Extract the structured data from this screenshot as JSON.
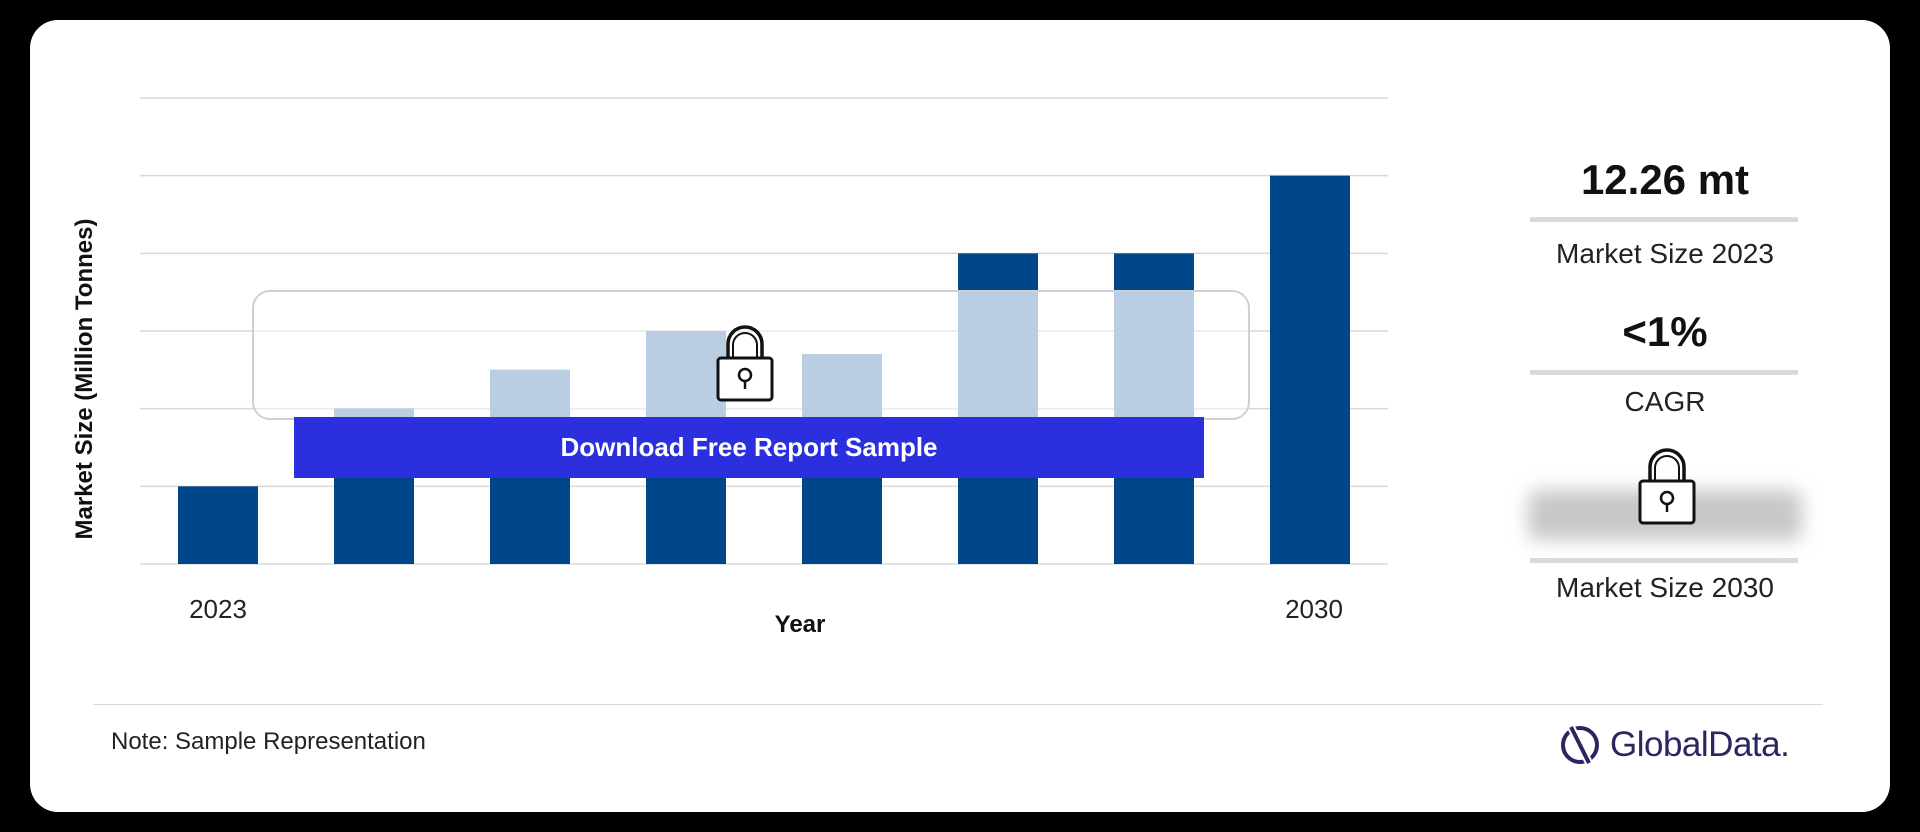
{
  "chart_data": {
    "type": "bar",
    "categories": [
      "2023",
      "",
      "",
      "",
      "",
      "",
      "",
      "2030"
    ],
    "values": [
      1,
      2,
      2.5,
      3,
      2.7,
      4,
      4,
      5
    ],
    "locked_values": [
      0,
      2,
      2.5,
      3,
      2.7,
      4,
      4,
      0
    ],
    "visible_tick_labels": [
      "2023",
      "2030"
    ],
    "xlabel": "Year",
    "ylabel": "Market Size (Million Tonnes)",
    "ylim": [
      0,
      6
    ],
    "grid": true,
    "colors": {
      "bar": "#00468b",
      "locked_bar": "#82a4cc"
    }
  },
  "overlay": {
    "download_label": "Download Free Report Sample",
    "lock_icon": "lock-icon"
  },
  "kpis": [
    {
      "value": "12.26 mt",
      "label": "Market Size 2023"
    },
    {
      "value": "<1%",
      "label": "CAGR"
    },
    {
      "value": "",
      "label": "Market Size 2030",
      "locked": true
    }
  ],
  "footer": {
    "note": "Note: Sample Representation",
    "brand": "GlobalData."
  }
}
